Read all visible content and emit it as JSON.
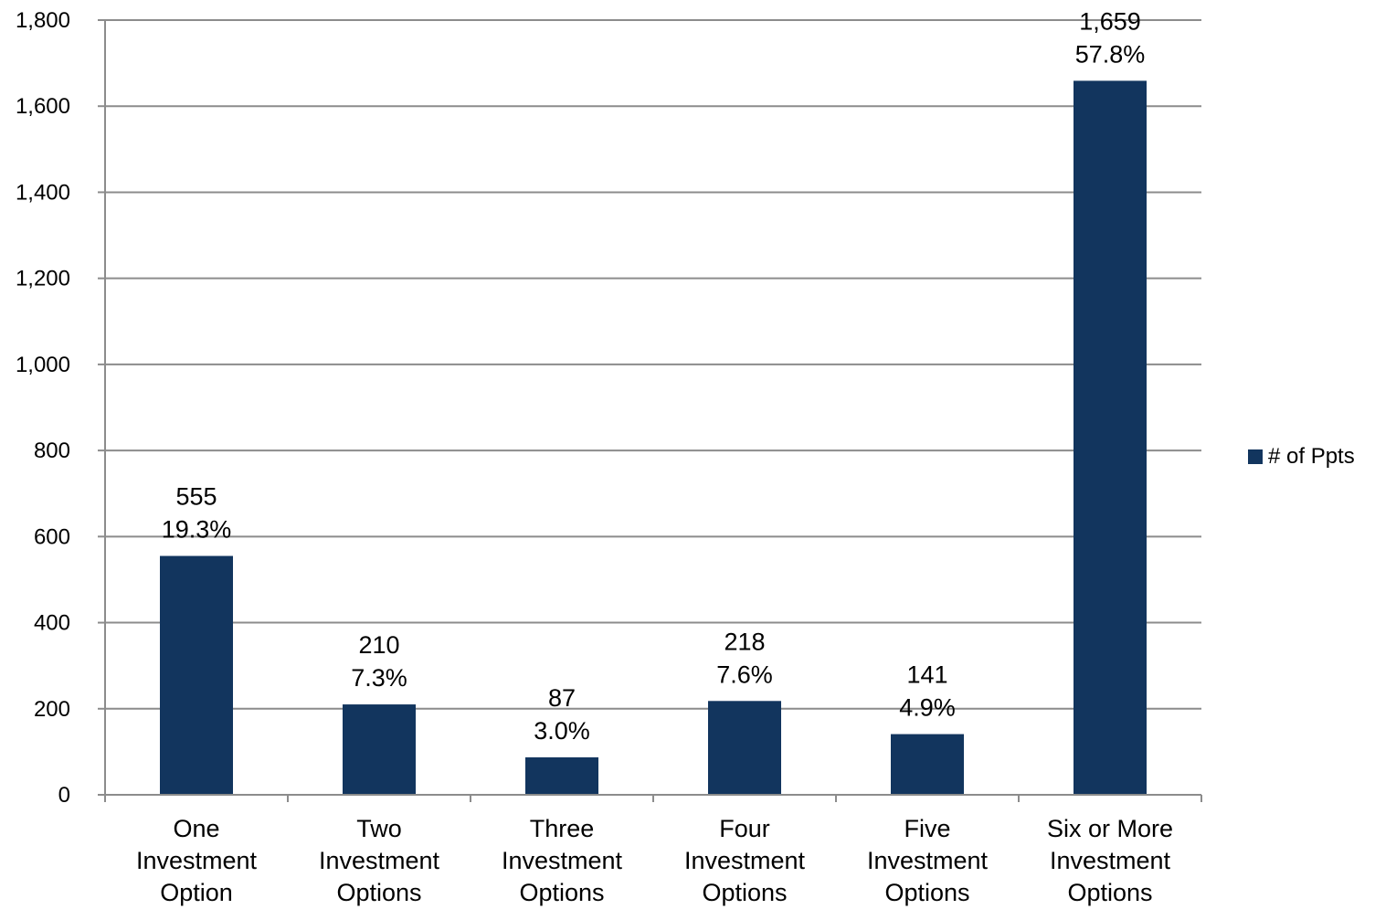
{
  "chart_data": {
    "type": "bar",
    "categories": [
      [
        "One",
        "Investment",
        "Option"
      ],
      [
        "Two",
        "Investment",
        "Options"
      ],
      [
        "Three",
        "Investment",
        "Options"
      ],
      [
        "Four",
        "Investment",
        "Options"
      ],
      [
        "Five",
        "Investment",
        "Options"
      ],
      [
        "Six or More",
        "Investment",
        "Options"
      ]
    ],
    "series": [
      {
        "name": "# of Ppts",
        "values": [
          555,
          210,
          87,
          218,
          141,
          1659
        ],
        "value_labels": [
          "555",
          "210",
          "87",
          "218",
          "141",
          "1,659"
        ],
        "percent_labels": [
          "19.3%",
          "7.3%",
          "3.0%",
          "7.6%",
          "4.9%",
          "57.8%"
        ]
      }
    ],
    "title": "",
    "xlabel": "",
    "ylabel": "",
    "ylim": [
      0,
      1800
    ],
    "yticks": [
      0,
      200,
      400,
      600,
      800,
      1000,
      1200,
      1400,
      1600,
      1800
    ],
    "ytick_labels": [
      "0",
      "200",
      "400",
      "600",
      "800",
      "1,000",
      "1,200",
      "1,400",
      "1,600",
      "1,800"
    ],
    "grid": true,
    "legend_position": "right",
    "bar_color": "#12355e",
    "grid_color": "#8c8c8c"
  }
}
